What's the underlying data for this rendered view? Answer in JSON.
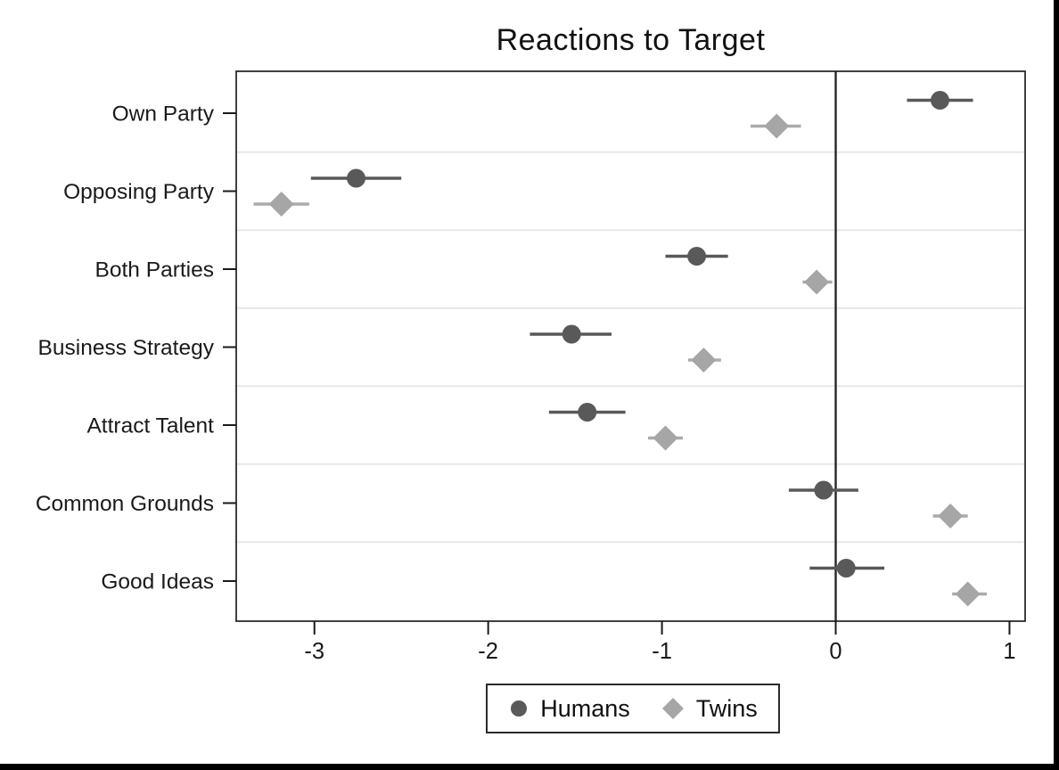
{
  "title": "Reactions to Target",
  "colors": {
    "humans": "#595959",
    "twins": "#a6a6a6",
    "twins_ci": "#ababab",
    "gridline": "#e7e7e7",
    "plot_border": "#1f1f1f",
    "zero_line": "#262626",
    "tick": "#1a1a1a",
    "window_edge": "#000000"
  },
  "chart_data": {
    "type": "scatter",
    "subtype": "coefficient-plot-with-confidence-intervals",
    "title": "Reactions to Target",
    "categories": [
      "Own Party",
      "Opposing Party",
      "Both Parties",
      "Business Strategy",
      "Attract Talent",
      "Common Grounds",
      "Good Ideas"
    ],
    "series": [
      {
        "name": "Humans",
        "marker": "circle",
        "color": "#595959",
        "estimates": [
          0.6,
          -2.76,
          -0.8,
          -1.52,
          -1.43,
          -0.07,
          0.06
        ],
        "ci_low": [
          0.41,
          -3.02,
          -0.98,
          -1.76,
          -1.65,
          -0.27,
          -0.15
        ],
        "ci_high": [
          0.79,
          -2.5,
          -0.62,
          -1.29,
          -1.21,
          0.13,
          0.28
        ]
      },
      {
        "name": "Twins",
        "marker": "diamond",
        "color": "#a6a6a6",
        "estimates": [
          -0.34,
          -3.19,
          -0.11,
          -0.76,
          -0.98,
          0.66,
          0.76
        ],
        "ci_low": [
          -0.49,
          -3.35,
          -0.19,
          -0.85,
          -1.08,
          0.56,
          0.67
        ],
        "ci_high": [
          -0.2,
          -3.03,
          -0.02,
          -0.66,
          -0.88,
          0.76,
          0.87
        ]
      }
    ],
    "x_ticks": [
      -3,
      -2,
      -1,
      0,
      1
    ],
    "x_tick_labels": [
      "-3",
      "-2",
      "-1",
      "0",
      "1"
    ],
    "xlim": [
      -3.45,
      1.09
    ],
    "xlabel": "",
    "ylabel": "",
    "zero_line_at": 0,
    "grid": "horizontal-between-categories",
    "legend_position": "bottom-center"
  }
}
